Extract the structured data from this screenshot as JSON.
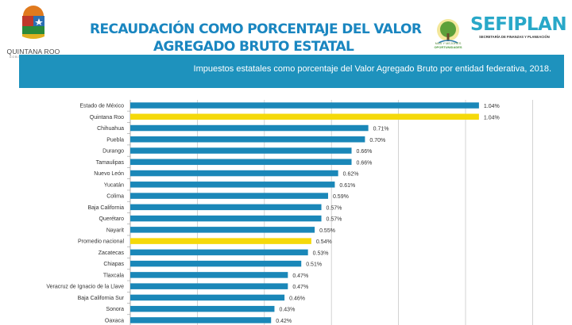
{
  "header": {
    "title_line1": "RECAUDACIÓN COMO PORCENTAJE DEL VALOR",
    "title_line2": "AGREGADO BRUTO ESTATAL",
    "left_logo": {
      "name": "QUINTANA ROO",
      "sub": "GOBIERNO DEL ESTADO",
      "years": "2016 • 2022"
    },
    "right_logo": {
      "caption1": "MÁS Y MEJORES",
      "caption2": "OPORTUNIDADES",
      "name": "SEFIPLAN",
      "sub": "SECRETARÍA DE FINANZAS Y PLANEACIÓN"
    },
    "banner_text": "Impuestos estatales como porcentaje del Valor Agregado Bruto por entidad federativa,  2018."
  },
  "colors": {
    "title": "#1a86c0",
    "banner": "#1e92bd",
    "bar": "#1a87b8",
    "highlight": "#f5d90a",
    "grid": "#c8c8c8"
  },
  "chart_data": {
    "type": "bar",
    "orientation": "horizontal",
    "categories": [
      "Estado de México",
      "Quintana Roo",
      "Chihuahua",
      "Puebla",
      "Durango",
      "Tamaulipas",
      "Nuevo León",
      "Yucatán",
      "Colima",
      "Baja California",
      "Querétaro",
      "Nayarit",
      "Promedio nacional",
      "Zacatecas",
      "Chiapas",
      "Tlaxcala",
      "Veracruz de Ignacio de la Llave",
      "Baja California Sur",
      "Sonora",
      "Oaxaca"
    ],
    "values": [
      1.04,
      1.04,
      0.71,
      0.7,
      0.66,
      0.66,
      0.62,
      0.61,
      0.59,
      0.57,
      0.57,
      0.55,
      0.54,
      0.53,
      0.51,
      0.47,
      0.47,
      0.46,
      0.43,
      0.42
    ],
    "labels": [
      "1.04%",
      "1.04%",
      "0.71%",
      "0.70%",
      "0.66%",
      "0.66%",
      "0.62%",
      "0.61%",
      "0.59%",
      "0.57%",
      "0.57%",
      "0.55%",
      "0.54%",
      "0.53%",
      "0.51%",
      "0.47%",
      "0.47%",
      "0.46%",
      "0.43%",
      "0.42%"
    ],
    "highlighted": [
      "Quintana Roo",
      "Promedio nacional"
    ],
    "unit": "%",
    "xlim": [
      0,
      1.2
    ],
    "grid_step": 0.2,
    "grid": true,
    "legend": "none"
  }
}
